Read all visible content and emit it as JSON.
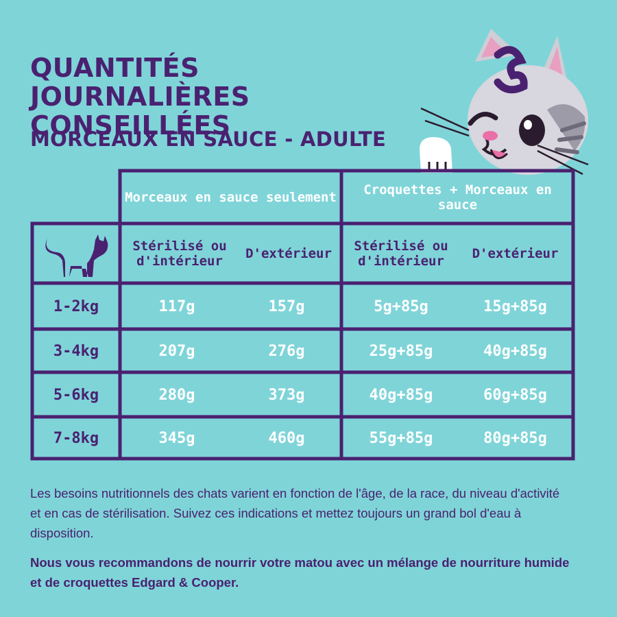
{
  "title": "QUANTITÉS JOURNALIÈRES CONSEILLÉES",
  "subtitle": "MORCEAUX EN SAUCE - ADULTE",
  "table": {
    "group_headers": [
      "Morceaux en sauce seulement",
      "Croquettes + Morceaux en sauce"
    ],
    "sub_headers": [
      "Stérilisé ou d'intérieur",
      "D'extérieur",
      "Stérilisé ou d'intérieur",
      "D'extérieur"
    ],
    "header_icon": "cat-silhouette-icon",
    "rows": [
      {
        "weight": "1-2kg",
        "values": [
          "117g",
          "157g",
          "5g+85g",
          "15g+85g"
        ]
      },
      {
        "weight": "3-4kg",
        "values": [
          "207g",
          "276g",
          "25g+85g",
          "40g+85g"
        ]
      },
      {
        "weight": "5-6kg",
        "values": [
          "280g",
          "373g",
          "40g+85g",
          "60g+85g"
        ]
      },
      {
        "weight": "7-8kg",
        "values": [
          "345g",
          "460g",
          "55g+85g",
          "80g+85g"
        ]
      }
    ]
  },
  "paragraphs": [
    "Les besoins nutritionnels des chats varient en fonction de l'âge, de la race, du niveau d'activité et en cas de stérilisation. Suivez ces indications et mettez toujours un grand bol d'eau à disposition.",
    "Nous vous recommandons de nourrir votre matou avec un mélange de nourriture humide et de croquettes Edgard & Cooper."
  ],
  "colors": {
    "background": "#7fd4d8",
    "ink": "#4a2170",
    "highlight": "#ffffff"
  },
  "mascot": {
    "icon": "cat-mascot-icon"
  }
}
